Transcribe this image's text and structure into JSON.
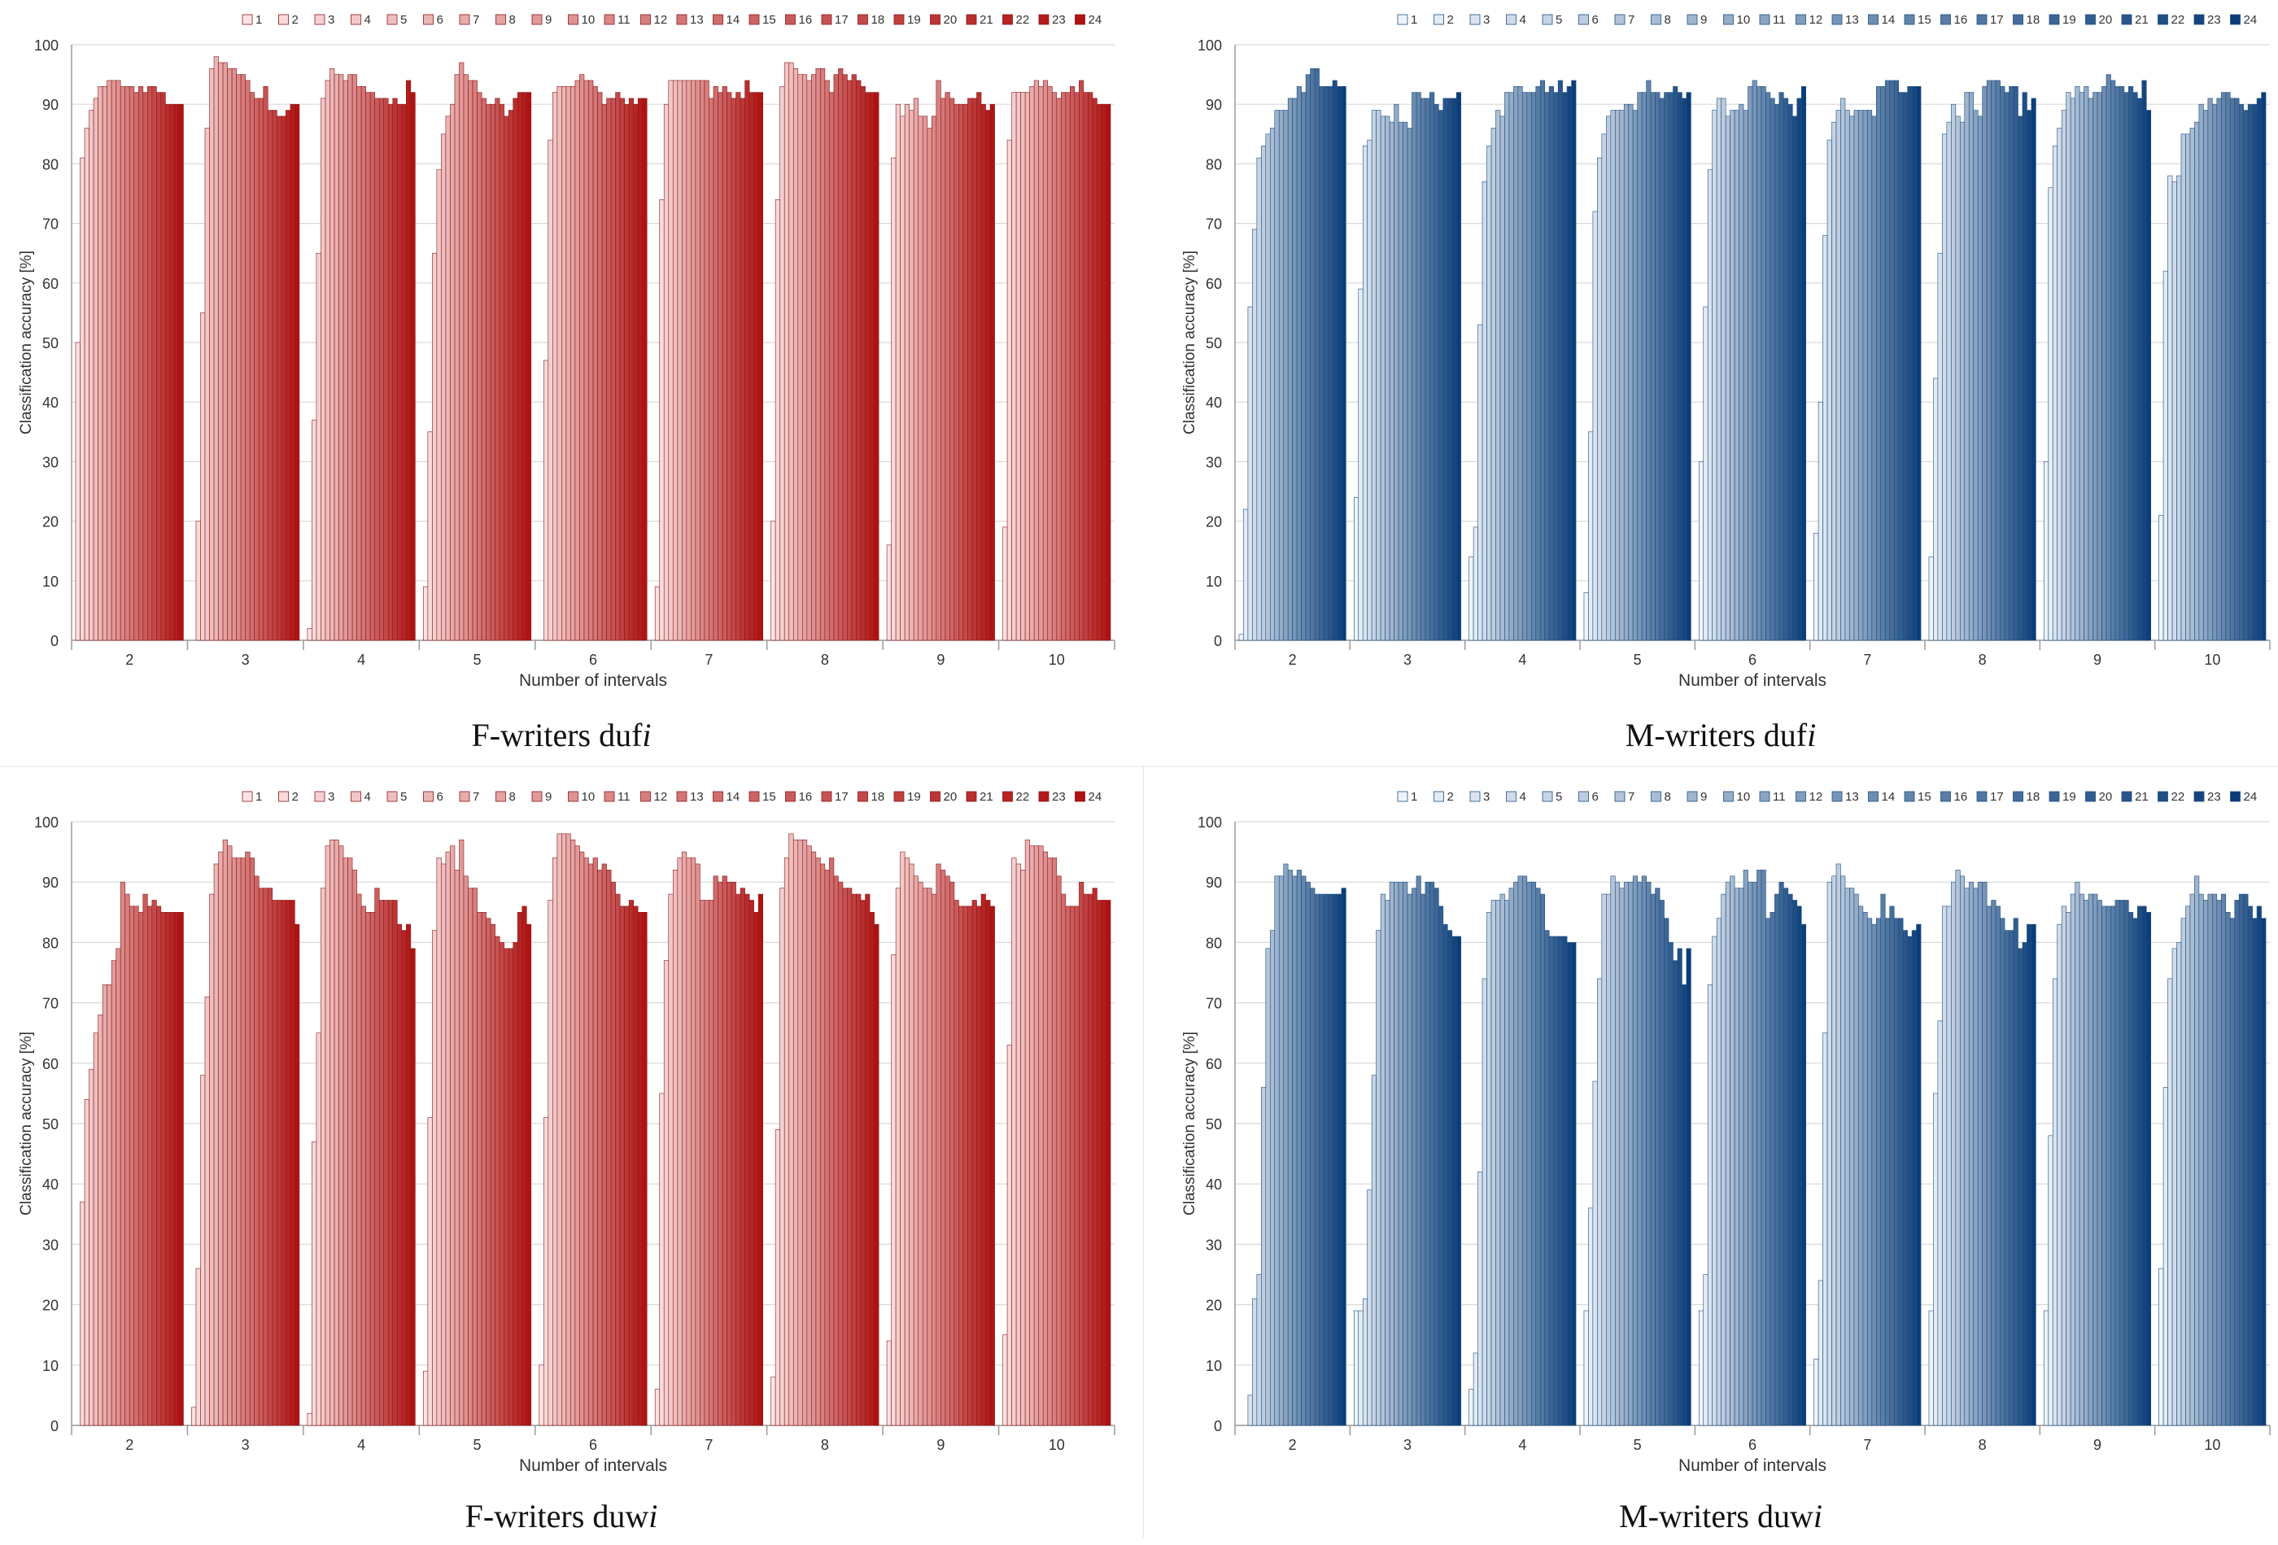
{
  "chart_data": [
    {
      "id": "f_dufi",
      "type": "bar",
      "caption_main": "F-writers duf",
      "caption_italic": "i",
      "xlabel": "Number of intervals",
      "ylabel": "Classification accuracy [%]",
      "ylim": [
        0,
        100
      ],
      "yticks": [
        0,
        10,
        20,
        30,
        40,
        50,
        60,
        70,
        80,
        90,
        100
      ],
      "categories": [
        "2",
        "3",
        "4",
        "5",
        "6",
        "7",
        "8",
        "9",
        "10"
      ],
      "legend_labels": [
        "1",
        "2",
        "3",
        "4",
        "5",
        "6",
        "7",
        "8",
        "9",
        "10",
        "11",
        "12",
        "13",
        "14",
        "15",
        "16",
        "17",
        "18",
        "19",
        "20",
        "21",
        "22",
        "23",
        "24"
      ],
      "color_light": "#fbe3e3",
      "color_dark": "#b01212",
      "stroke": "#8a1a1a",
      "series_values": [
        [
          50,
          81,
          86,
          89,
          91,
          93,
          93,
          94,
          94,
          94,
          93,
          93,
          93,
          92,
          93,
          92,
          93,
          93,
          92,
          92,
          90,
          90,
          90,
          90
        ],
        [
          0,
          20,
          55,
          86,
          96,
          98,
          97,
          97,
          96,
          96,
          95,
          95,
          94,
          92,
          91,
          91,
          93,
          89,
          89,
          88,
          88,
          89,
          90,
          90
        ],
        [
          2,
          37,
          65,
          91,
          94,
          96,
          95,
          95,
          94,
          95,
          95,
          93,
          93,
          92,
          92,
          91,
          91,
          91,
          90,
          91,
          90,
          90,
          94,
          92
        ],
        [
          9,
          35,
          65,
          79,
          85,
          88,
          90,
          95,
          97,
          95,
          94,
          94,
          92,
          91,
          90,
          90,
          91,
          90,
          88,
          89,
          91,
          92,
          92,
          92
        ],
        [
          0,
          47,
          84,
          92,
          93,
          93,
          93,
          93,
          94,
          95,
          94,
          94,
          93,
          92,
          90,
          91,
          91,
          92,
          91,
          90,
          91,
          90,
          91,
          91
        ],
        [
          9,
          74,
          90,
          94,
          94,
          94,
          94,
          94,
          94,
          94,
          94,
          94,
          91,
          93,
          92,
          93,
          92,
          91,
          92,
          91,
          94,
          92,
          92,
          92
        ],
        [
          20,
          74,
          93,
          97,
          97,
          96,
          95,
          95,
          94,
          95,
          96,
          96,
          94,
          92,
          95,
          96,
          95,
          94,
          95,
          94,
          93,
          92,
          92,
          92
        ],
        [
          16,
          81,
          90,
          88,
          90,
          89,
          91,
          88,
          88,
          86,
          88,
          94,
          91,
          92,
          91,
          90,
          90,
          90,
          91,
          91,
          92,
          90,
          89,
          90
        ],
        [
          19,
          84,
          92,
          92,
          92,
          92,
          93,
          94,
          93,
          94,
          93,
          92,
          91,
          92,
          92,
          93,
          92,
          94,
          92,
          92,
          91,
          90,
          90,
          90
        ]
      ]
    },
    {
      "id": "m_dufi",
      "type": "bar",
      "caption_main": "M-writers duf",
      "caption_italic": "i",
      "xlabel": "Number of intervals",
      "ylabel": "Classification accuracy [%]",
      "ylim": [
        0,
        100
      ],
      "yticks": [
        0,
        10,
        20,
        30,
        40,
        50,
        60,
        70,
        80,
        90,
        100
      ],
      "categories": [
        "2",
        "3",
        "4",
        "5",
        "6",
        "7",
        "8",
        "9",
        "10"
      ],
      "legend_labels": [
        "1",
        "2",
        "3",
        "4",
        "5",
        "6",
        "7",
        "8",
        "9",
        "10",
        "11",
        "12",
        "13",
        "14",
        "15",
        "16",
        "17",
        "18",
        "19",
        "20",
        "21",
        "22",
        "23",
        "24"
      ],
      "color_light": "#eef4fa",
      "color_dark": "#0b3d78",
      "stroke": "#1d4f80",
      "series_values": [
        [
          1,
          22,
          56,
          69,
          81,
          83,
          85,
          86,
          89,
          89,
          89,
          91,
          91,
          93,
          92,
          95,
          96,
          96,
          93,
          93,
          93,
          94,
          93,
          93
        ],
        [
          24,
          59,
          83,
          84,
          89,
          89,
          88,
          88,
          87,
          90,
          87,
          87,
          86,
          92,
          92,
          91,
          91,
          92,
          90,
          89,
          91,
          91,
          91,
          92
        ],
        [
          14,
          19,
          53,
          77,
          83,
          86,
          89,
          88,
          92,
          92,
          93,
          93,
          92,
          92,
          92,
          93,
          94,
          92,
          93,
          92,
          94,
          92,
          93,
          94
        ],
        [
          8,
          35,
          72,
          81,
          85,
          88,
          89,
          89,
          89,
          90,
          90,
          89,
          92,
          92,
          94,
          92,
          92,
          91,
          92,
          92,
          93,
          92,
          91,
          92
        ],
        [
          30,
          56,
          79,
          89,
          91,
          91,
          88,
          89,
          89,
          90,
          89,
          93,
          94,
          93,
          93,
          92,
          91,
          90,
          92,
          91,
          90,
          88,
          91,
          93
        ],
        [
          18,
          40,
          68,
          84,
          87,
          89,
          91,
          89,
          88,
          89,
          89,
          89,
          89,
          88,
          93,
          93,
          94,
          94,
          94,
          92,
          92,
          93,
          93,
          93
        ],
        [
          14,
          44,
          65,
          85,
          87,
          90,
          88,
          87,
          92,
          92,
          89,
          88,
          93,
          94,
          94,
          94,
          93,
          92,
          93,
          93,
          88,
          92,
          89,
          91
        ],
        [
          30,
          76,
          83,
          86,
          89,
          92,
          91,
          93,
          92,
          93,
          91,
          92,
          92,
          93,
          95,
          94,
          93,
          93,
          92,
          93,
          92,
          91,
          94,
          89
        ],
        [
          21,
          62,
          78,
          77,
          78,
          85,
          85,
          86,
          87,
          90,
          89,
          91,
          90,
          91,
          92,
          92,
          91,
          91,
          90,
          89,
          90,
          90,
          91,
          92
        ]
      ]
    },
    {
      "id": "f_duwi",
      "type": "bar",
      "caption_main": "F-writers duw",
      "caption_italic": "i",
      "xlabel": "Number of intervals",
      "ylabel": "Classification accuracy [%]",
      "ylim": [
        0,
        100
      ],
      "yticks": [
        0,
        10,
        20,
        30,
        40,
        50,
        60,
        70,
        80,
        90,
        100
      ],
      "categories": [
        "2",
        "3",
        "4",
        "5",
        "6",
        "7",
        "8",
        "9",
        "10"
      ],
      "legend_labels": [
        "1",
        "2",
        "3",
        "4",
        "5",
        "6",
        "7",
        "8",
        "9",
        "10",
        "11",
        "12",
        "13",
        "14",
        "15",
        "16",
        "17",
        "18",
        "19",
        "20",
        "21",
        "22",
        "23",
        "24"
      ],
      "color_light": "#fbe3e3",
      "color_dark": "#b01212",
      "stroke": "#8a1a1a",
      "series_values": [
        [
          0,
          37,
          54,
          59,
          65,
          68,
          73,
          73,
          77,
          79,
          90,
          88,
          86,
          86,
          85,
          88,
          86,
          87,
          86,
          85,
          85,
          85,
          85,
          85
        ],
        [
          3,
          26,
          58,
          71,
          88,
          93,
          95,
          97,
          96,
          94,
          94,
          94,
          95,
          94,
          91,
          89,
          89,
          89,
          87,
          87,
          87,
          87,
          87,
          83
        ],
        [
          2,
          47,
          65,
          89,
          96,
          97,
          97,
          96,
          94,
          94,
          92,
          88,
          86,
          85,
          85,
          89,
          87,
          87,
          87,
          87,
          83,
          82,
          83,
          79
        ],
        [
          9,
          51,
          82,
          94,
          93,
          95,
          96,
          92,
          97,
          91,
          89,
          89,
          85,
          85,
          84,
          83,
          81,
          80,
          79,
          79,
          80,
          85,
          86,
          83
        ],
        [
          10,
          51,
          87,
          94,
          98,
          98,
          98,
          97,
          96,
          95,
          94,
          93,
          94,
          92,
          93,
          92,
          90,
          88,
          86,
          86,
          87,
          86,
          85,
          85
        ],
        [
          6,
          55,
          77,
          88,
          92,
          94,
          95,
          94,
          94,
          93,
          87,
          87,
          87,
          91,
          90,
          91,
          90,
          90,
          88,
          89,
          88,
          87,
          85,
          88
        ],
        [
          8,
          49,
          89,
          94,
          98,
          97,
          97,
          97,
          96,
          95,
          94,
          93,
          92,
          94,
          91,
          90,
          89,
          89,
          88,
          88,
          87,
          88,
          85,
          83
        ],
        [
          14,
          78,
          89,
          95,
          94,
          93,
          91,
          90,
          89,
          89,
          88,
          93,
          92,
          91,
          90,
          87,
          86,
          86,
          86,
          87,
          86,
          88,
          87,
          86
        ],
        [
          15,
          63,
          94,
          93,
          92,
          97,
          96,
          96,
          96,
          95,
          94,
          94,
          91,
          88,
          86,
          86,
          86,
          90,
          88,
          88,
          89,
          87,
          87,
          87
        ]
      ]
    },
    {
      "id": "m_duwi",
      "type": "bar",
      "caption_main": "M-writers duw",
      "caption_italic": "i",
      "xlabel": "Number of intervals",
      "ylabel": "Classification accuracy [%]",
      "ylim": [
        0,
        100
      ],
      "yticks": [
        0,
        10,
        20,
        30,
        40,
        50,
        60,
        70,
        80,
        90,
        100
      ],
      "categories": [
        "2",
        "3",
        "4",
        "5",
        "6",
        "7",
        "8",
        "9",
        "10"
      ],
      "legend_labels": [
        "1",
        "2",
        "3",
        "4",
        "5",
        "6",
        "7",
        "8",
        "9",
        "10",
        "11",
        "12",
        "13",
        "14",
        "15",
        "16",
        "17",
        "18",
        "19",
        "20",
        "21",
        "22",
        "23",
        "24"
      ],
      "color_light": "#eef4fa",
      "color_dark": "#0b3d78",
      "stroke": "#1d4f80",
      "series_values": [
        [
          0,
          0,
          5,
          21,
          25,
          56,
          79,
          82,
          91,
          91,
          93,
          92,
          91,
          92,
          91,
          90,
          89,
          88,
          88,
          88,
          88,
          88,
          88,
          89
        ],
        [
          19,
          19,
          21,
          39,
          58,
          82,
          88,
          87,
          90,
          90,
          90,
          90,
          88,
          89,
          91,
          88,
          90,
          90,
          89,
          86,
          83,
          82,
          81,
          81
        ],
        [
          6,
          12,
          42,
          74,
          85,
          87,
          87,
          88,
          87,
          89,
          90,
          91,
          91,
          90,
          90,
          89,
          88,
          82,
          81,
          81,
          81,
          81,
          80,
          80
        ],
        [
          19,
          36,
          57,
          74,
          88,
          88,
          91,
          90,
          89,
          90,
          90,
          91,
          90,
          91,
          90,
          88,
          89,
          87,
          84,
          80,
          77,
          79,
          73,
          79
        ],
        [
          19,
          25,
          73,
          81,
          84,
          88,
          90,
          91,
          89,
          89,
          92,
          90,
          90,
          92,
          92,
          84,
          85,
          88,
          90,
          89,
          88,
          87,
          86,
          83
        ],
        [
          11,
          24,
          65,
          90,
          91,
          93,
          91,
          89,
          89,
          88,
          86,
          85,
          84,
          83,
          84,
          88,
          84,
          86,
          84,
          84,
          82,
          81,
          82,
          83
        ],
        [
          19,
          55,
          67,
          86,
          86,
          90,
          92,
          91,
          89,
          90,
          89,
          90,
          90,
          86,
          87,
          86,
          84,
          82,
          82,
          84,
          79,
          80,
          83,
          83
        ],
        [
          19,
          48,
          74,
          83,
          86,
          85,
          88,
          90,
          88,
          87,
          88,
          88,
          87,
          86,
          86,
          86,
          87,
          87,
          87,
          85,
          84,
          86,
          86,
          85
        ],
        [
          26,
          56,
          74,
          79,
          80,
          84,
          86,
          88,
          91,
          88,
          87,
          88,
          88,
          87,
          88,
          85,
          84,
          87,
          88,
          88,
          86,
          84,
          86,
          84
        ]
      ]
    }
  ]
}
